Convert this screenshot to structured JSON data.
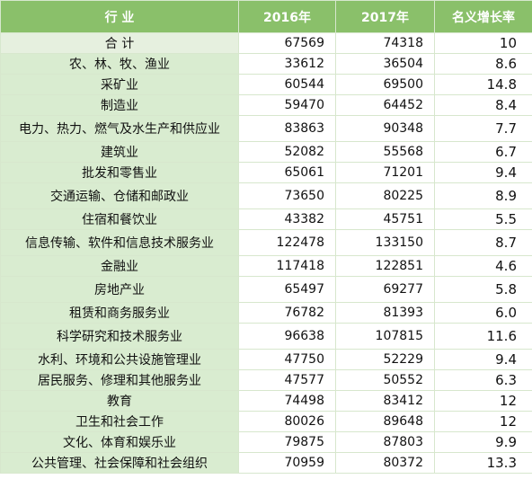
{
  "table": {
    "headers": [
      "行 业",
      "2016年",
      "2017年",
      "名义增长率"
    ],
    "rows": [
      {
        "industry": "合 计",
        "y2016": "67569",
        "y2017": "74318",
        "rate": "10"
      },
      {
        "industry": "农、林、牧、渔业",
        "y2016": "33612",
        "y2017": "36504",
        "rate": "8.6"
      },
      {
        "industry": "采矿业",
        "y2016": "60544",
        "y2017": "69500",
        "rate": "14.8"
      },
      {
        "industry": "制造业",
        "y2016": "59470",
        "y2017": "64452",
        "rate": "8.4"
      },
      {
        "industry": "电力、热力、燃气及水生产和供应业",
        "y2016": "83863",
        "y2017": "90348",
        "rate": "7.7"
      },
      {
        "industry": "建筑业",
        "y2016": "52082",
        "y2017": "55568",
        "rate": "6.7"
      },
      {
        "industry": "批发和零售业",
        "y2016": "65061",
        "y2017": "71201",
        "rate": "9.4"
      },
      {
        "industry": "交通运输、仓储和邮政业",
        "y2016": "73650",
        "y2017": "80225",
        "rate": "8.9"
      },
      {
        "industry": "住宿和餐饮业",
        "y2016": "43382",
        "y2017": "45751",
        "rate": "5.5"
      },
      {
        "industry": "信息传输、软件和信息技术服务业",
        "y2016": "122478",
        "y2017": "133150",
        "rate": "8.7"
      },
      {
        "industry": "金融业",
        "y2016": "117418",
        "y2017": "122851",
        "rate": "4.6"
      },
      {
        "industry": "房地产业",
        "y2016": "65497",
        "y2017": "69277",
        "rate": "5.8"
      },
      {
        "industry": "租赁和商务服务业",
        "y2016": "76782",
        "y2017": "81393",
        "rate": "6.0"
      },
      {
        "industry": "科学研究和技术服务业",
        "y2016": "96638",
        "y2017": "107815",
        "rate": "11.6"
      },
      {
        "industry": "水利、环境和公共设施管理业",
        "y2016": "47750",
        "y2017": "52229",
        "rate": "9.4"
      },
      {
        "industry": "居民服务、修理和其他服务业",
        "y2016": "47577",
        "y2017": "50552",
        "rate": "6.3"
      },
      {
        "industry": "教育",
        "y2016": "74498",
        "y2017": "83412",
        "rate": "12"
      },
      {
        "industry": "卫生和社会工作",
        "y2016": "80026",
        "y2017": "89648",
        "rate": "12"
      },
      {
        "industry": "文化、体育和娱乐业",
        "y2016": "79875",
        "y2017": "87803",
        "rate": "9.9"
      },
      {
        "industry": "公共管理、社会保障和社会组织",
        "y2016": "70959",
        "y2017": "80372",
        "rate": "13.3"
      }
    ]
  }
}
